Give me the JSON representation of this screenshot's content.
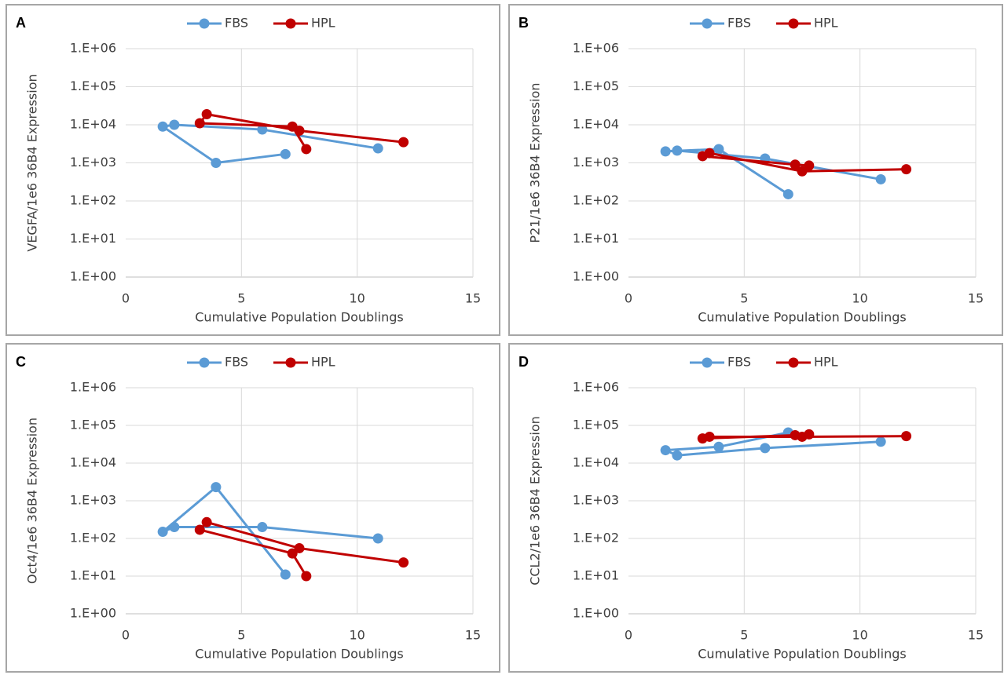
{
  "chart_data": [
    {
      "type": "line",
      "label": "A",
      "ylabel": "VEGFA/1e6 36B4 Expression",
      "xlabel": "Cumulative Population Doublings",
      "xlim": [
        0,
        15
      ],
      "xticks": [
        0,
        5,
        10,
        15
      ],
      "ylim": [
        1,
        1000000
      ],
      "log_y": true,
      "grid": true,
      "legend": "top",
      "yticks": [
        {
          "value": 1,
          "label": "1.E+00"
        },
        {
          "value": 10,
          "label": "1.E+01"
        },
        {
          "value": 100,
          "label": "1.E+02"
        },
        {
          "value": 1000,
          "label": "1.E+03"
        },
        {
          "value": 10000,
          "label": "1.E+04"
        },
        {
          "value": 100000,
          "label": "1.E+05"
        },
        {
          "value": 1000000,
          "label": "1.E+06"
        }
      ],
      "series": [
        {
          "name": "FBS",
          "color": "#5b9bd5",
          "x": [
            6.9,
            3.9,
            1.6,
            2.1,
            5.9,
            10.9
          ],
          "values": [
            1700,
            1000,
            9000,
            10000,
            7500,
            2400
          ]
        },
        {
          "name": "HPL",
          "color": "#c00000",
          "x": [
            7.8,
            7.2,
            3.2,
            3.5,
            7.5,
            12
          ],
          "values": [
            2300,
            9000,
            11000,
            19000,
            7000,
            3500
          ]
        }
      ]
    },
    {
      "type": "line",
      "label": "B",
      "ylabel": "P21/1e6 36B4 Expression",
      "xlabel": "Cumulative Population Doublings",
      "xlim": [
        0,
        15
      ],
      "xticks": [
        0,
        5,
        10,
        15
      ],
      "ylim": [
        1,
        1000000
      ],
      "log_y": true,
      "grid": true,
      "legend": "top",
      "yticks": [
        {
          "value": 1,
          "label": "1.E+00"
        },
        {
          "value": 10,
          "label": "1.E+01"
        },
        {
          "value": 100,
          "label": "1.E+02"
        },
        {
          "value": 1000,
          "label": "1.E+03"
        },
        {
          "value": 10000,
          "label": "1.E+04"
        },
        {
          "value": 100000,
          "label": "1.E+05"
        },
        {
          "value": 1000000,
          "label": "1.E+06"
        }
      ],
      "series": [
        {
          "name": "FBS",
          "color": "#5b9bd5",
          "x": [
            6.9,
            3.9,
            1.6,
            2.1,
            5.9,
            10.9
          ],
          "values": [
            150,
            2300,
            2000,
            2100,
            1300,
            370
          ]
        },
        {
          "name": "HPL",
          "color": "#c00000",
          "x": [
            7.8,
            7.2,
            3.2,
            3.5,
            7.5,
            12
          ],
          "values": [
            850,
            900,
            1500,
            1800,
            600,
            680
          ]
        }
      ]
    },
    {
      "type": "line",
      "label": "C",
      "ylabel": "Oct4/1e6 36B4 Expression",
      "xlabel": "Cumulative Population Doublings",
      "xlim": [
        0,
        15
      ],
      "xticks": [
        0,
        5,
        10,
        15
      ],
      "ylim": [
        1,
        1000000
      ],
      "log_y": true,
      "grid": true,
      "legend": "top",
      "yticks": [
        {
          "value": 1,
          "label": "1.E+00"
        },
        {
          "value": 10,
          "label": "1.E+01"
        },
        {
          "value": 100,
          "label": "1.E+02"
        },
        {
          "value": 1000,
          "label": "1.E+03"
        },
        {
          "value": 10000,
          "label": "1.E+04"
        },
        {
          "value": 100000,
          "label": "1.E+05"
        },
        {
          "value": 1000000,
          "label": "1.E+06"
        }
      ],
      "series": [
        {
          "name": "FBS",
          "color": "#5b9bd5",
          "x": [
            6.9,
            3.9,
            1.6,
            2.1,
            5.9,
            10.9
          ],
          "values": [
            11,
            2300,
            150,
            200,
            200,
            100
          ]
        },
        {
          "name": "HPL",
          "color": "#c00000",
          "x": [
            7.8,
            7.2,
            3.2,
            3.5,
            7.5,
            12
          ],
          "values": [
            10,
            40,
            170,
            270,
            55,
            23
          ]
        }
      ]
    },
    {
      "type": "line",
      "label": "D",
      "ylabel": "CCL2/1e6 36B4 Expression",
      "xlabel": "Cumulative Population Doublings",
      "xlim": [
        0,
        15
      ],
      "xticks": [
        0,
        5,
        10,
        15
      ],
      "ylim": [
        1,
        1000000
      ],
      "log_y": true,
      "grid": true,
      "legend": "top",
      "yticks": [
        {
          "value": 1,
          "label": "1.E+00"
        },
        {
          "value": 10,
          "label": "1.E+01"
        },
        {
          "value": 100,
          "label": "1.E+02"
        },
        {
          "value": 1000,
          "label": "1.E+03"
        },
        {
          "value": 10000,
          "label": "1.E+04"
        },
        {
          "value": 100000,
          "label": "1.E+05"
        },
        {
          "value": 1000000,
          "label": "1.E+06"
        }
      ],
      "series": [
        {
          "name": "FBS",
          "color": "#5b9bd5",
          "x": [
            6.9,
            3.9,
            1.6,
            2.1,
            5.9,
            10.9
          ],
          "values": [
            65000,
            27000,
            22000,
            16000,
            25000,
            37000
          ]
        },
        {
          "name": "HPL",
          "color": "#c00000",
          "x": [
            7.8,
            7.2,
            3.2,
            3.5,
            7.5,
            12
          ],
          "values": [
            58000,
            55000,
            45000,
            50000,
            50000,
            52000
          ]
        }
      ]
    }
  ]
}
